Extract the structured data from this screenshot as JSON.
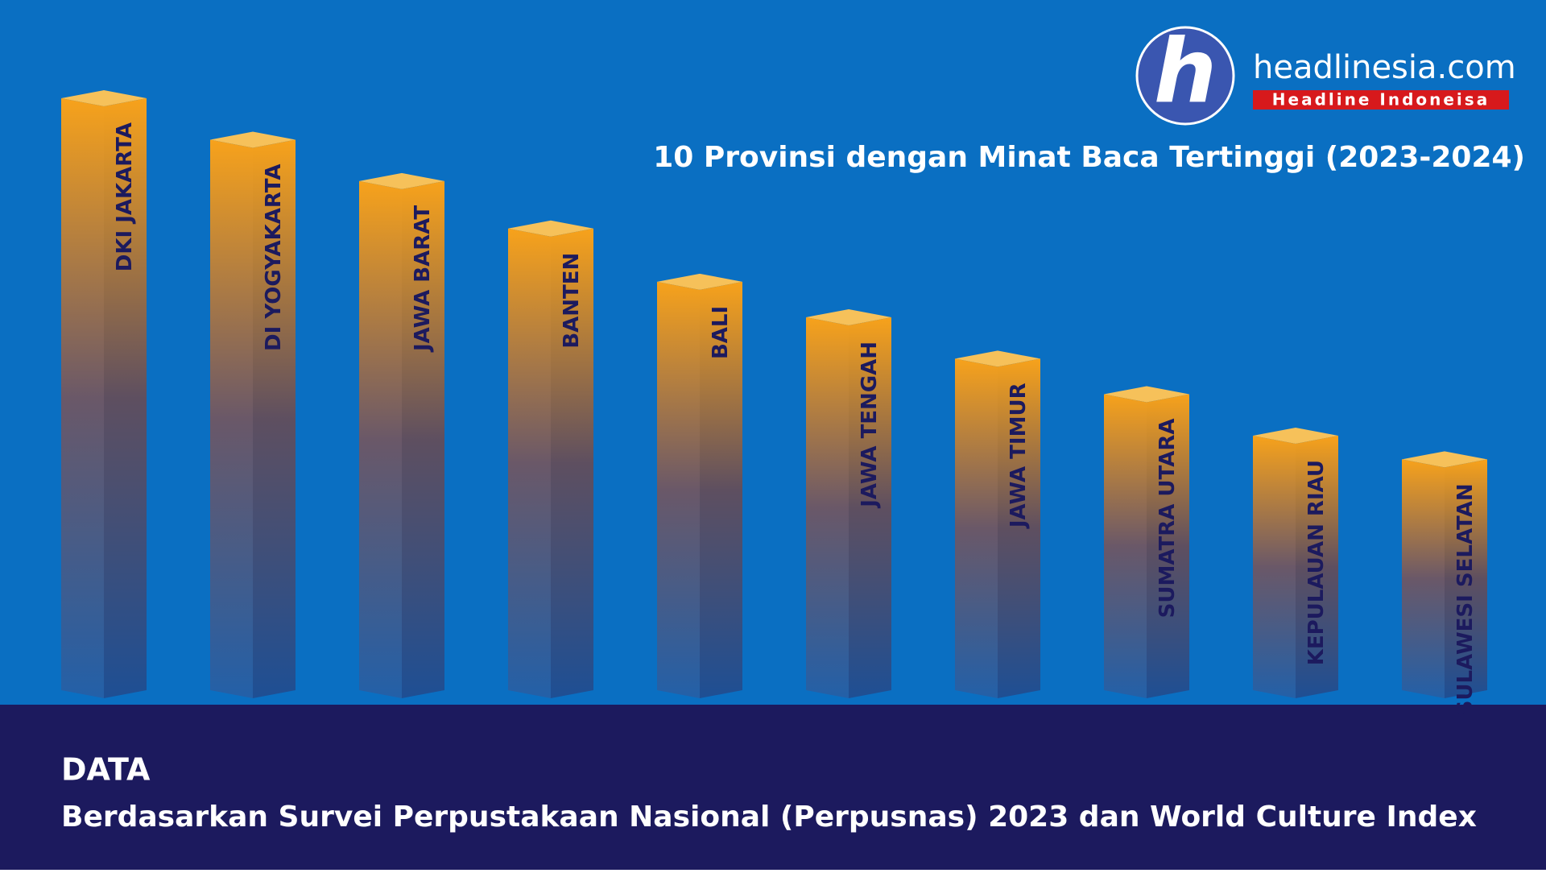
{
  "logo": {
    "name": "headlinesia.com",
    "tagline": "Headline Indoneisa"
  },
  "chart_data": {
    "type": "bar",
    "title": "10 Provinsi dengan Minat Baca Tertinggi (2023-2024)",
    "categories": [
      "DKI JAKARTA",
      "DI YOGYAKARTA",
      "JAWA BARAT",
      "BANTEN",
      "BALI",
      "JAWA TENGAH",
      "JAWA TIMUR",
      "SUMATRA UTARA",
      "KEPULAUAN RIAU",
      "SULAWESI SELATAN"
    ],
    "values": [
      100,
      93,
      86,
      78,
      69,
      63,
      56,
      50,
      43,
      39
    ],
    "ylim": [
      0,
      100
    ],
    "color": "#f7a21b"
  },
  "source": {
    "heading": "DATA",
    "text": "Berdasarkan Survei Perpustakaan Nasional (Perpusnas) 2023 dan World Culture Index"
  }
}
